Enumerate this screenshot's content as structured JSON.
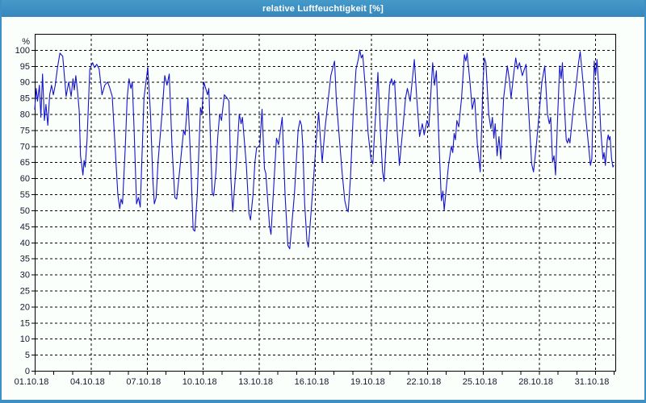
{
  "window": {
    "title": "relative Luftfeuchtigkeit [%]"
  },
  "colors": {
    "titlebar": "#3d8fc4",
    "line": "#1414cc",
    "grid": "#000000",
    "label": "#16162c",
    "plot_background": "#fbfffb"
  },
  "chart_data": {
    "type": "line",
    "title": "relative Luftfeuchtigkeit [%]",
    "xlabel": "",
    "ylabel": "%",
    "grid": "dashed",
    "legend": "none",
    "y_axis": {
      "unit_label": "%",
      "min": 0,
      "max": 105,
      "tick_step": 5,
      "tick_labels": [
        0,
        5,
        10,
        15,
        20,
        25,
        30,
        35,
        40,
        45,
        50,
        55,
        60,
        65,
        70,
        75,
        80,
        85,
        90,
        95,
        100
      ]
    },
    "x_axis": {
      "start_day": 1,
      "end_day": 32.08,
      "minor_tick_every_days": 1,
      "tick_labels": [
        {
          "day": 1,
          "label": "01.10.18"
        },
        {
          "day": 4,
          "label": "04.10.18"
        },
        {
          "day": 7,
          "label": "07.10.18"
        },
        {
          "day": 10,
          "label": "10.10.18"
        },
        {
          "day": 13,
          "label": "13.10.18"
        },
        {
          "day": 16,
          "label": "16.10.18"
        },
        {
          "day": 19,
          "label": "19.10.18"
        },
        {
          "day": 22,
          "label": "22.10.18"
        },
        {
          "day": 25,
          "label": "25.10.18"
        },
        {
          "day": 28,
          "label": "28.10.18"
        },
        {
          "day": 31,
          "label": "31.10.18"
        }
      ]
    },
    "series": [
      {
        "name": "relative Luftfeuchtigkeit",
        "color": "#1414cc",
        "points": [
          [
            1.0,
            81.5
          ],
          [
            1.08,
            88
          ],
          [
            1.15,
            84
          ],
          [
            1.25,
            89
          ],
          [
            1.33,
            79
          ],
          [
            1.42,
            92.5
          ],
          [
            1.52,
            78
          ],
          [
            1.6,
            83
          ],
          [
            1.7,
            76.5
          ],
          [
            1.8,
            86
          ],
          [
            1.9,
            89
          ],
          [
            2.0,
            86
          ],
          [
            2.1,
            89
          ],
          [
            2.22,
            94.5
          ],
          [
            2.35,
            99
          ],
          [
            2.5,
            98
          ],
          [
            2.68,
            85.5
          ],
          [
            2.82,
            90
          ],
          [
            2.95,
            85.5
          ],
          [
            3.05,
            91
          ],
          [
            3.12,
            87.5
          ],
          [
            3.2,
            92
          ],
          [
            3.3,
            86.5
          ],
          [
            3.38,
            81
          ],
          [
            3.45,
            67
          ],
          [
            3.52,
            64
          ],
          [
            3.58,
            61
          ],
          [
            3.64,
            65.5
          ],
          [
            3.7,
            63.5
          ],
          [
            3.8,
            72
          ],
          [
            3.95,
            94
          ],
          [
            4.1,
            96
          ],
          [
            4.2,
            94.5
          ],
          [
            4.32,
            95.5
          ],
          [
            4.45,
            94
          ],
          [
            4.6,
            86
          ],
          [
            4.75,
            89
          ],
          [
            4.9,
            90
          ],
          [
            5.0,
            88.5
          ],
          [
            5.15,
            85.5
          ],
          [
            5.3,
            70
          ],
          [
            5.45,
            55
          ],
          [
            5.55,
            50.5
          ],
          [
            5.62,
            53.5
          ],
          [
            5.7,
            52
          ],
          [
            5.85,
            70
          ],
          [
            5.95,
            85
          ],
          [
            6.05,
            91
          ],
          [
            6.15,
            88
          ],
          [
            6.22,
            90
          ],
          [
            6.32,
            75
          ],
          [
            6.45,
            52
          ],
          [
            6.55,
            54
          ],
          [
            6.65,
            51
          ],
          [
            6.85,
            85
          ],
          [
            7.05,
            94.5
          ],
          [
            7.2,
            80
          ],
          [
            7.32,
            60
          ],
          [
            7.4,
            52
          ],
          [
            7.5,
            54
          ],
          [
            7.6,
            65
          ],
          [
            7.8,
            79
          ],
          [
            7.96,
            92
          ],
          [
            8.08,
            89
          ],
          [
            8.2,
            92.5
          ],
          [
            8.35,
            70
          ],
          [
            8.5,
            54
          ],
          [
            8.6,
            53.5
          ],
          [
            8.75,
            62
          ],
          [
            8.97,
            75
          ],
          [
            9.05,
            73.5
          ],
          [
            9.2,
            85
          ],
          [
            9.35,
            65
          ],
          [
            9.48,
            44
          ],
          [
            9.57,
            43.5
          ],
          [
            9.7,
            55
          ],
          [
            9.87,
            82
          ],
          [
            9.95,
            80
          ],
          [
            10.05,
            90
          ],
          [
            10.15,
            88
          ],
          [
            10.25,
            86
          ],
          [
            10.32,
            88
          ],
          [
            10.42,
            70
          ],
          [
            10.5,
            55.5
          ],
          [
            10.58,
            54.5
          ],
          [
            10.7,
            62
          ],
          [
            10.8,
            73
          ],
          [
            10.9,
            80
          ],
          [
            11.0,
            78
          ],
          [
            11.15,
            86
          ],
          [
            11.3,
            85
          ],
          [
            11.4,
            84
          ],
          [
            11.5,
            60
          ],
          [
            11.6,
            49.5
          ],
          [
            11.8,
            65
          ],
          [
            11.95,
            80
          ],
          [
            12.05,
            77
          ],
          [
            12.12,
            79
          ],
          [
            12.33,
            64
          ],
          [
            12.47,
            49
          ],
          [
            12.55,
            47
          ],
          [
            12.69,
            55
          ],
          [
            12.79,
            65
          ],
          [
            12.88,
            69.5
          ],
          [
            13.0,
            70
          ],
          [
            13.05,
            70.5
          ],
          [
            13.17,
            81.5
          ],
          [
            13.3,
            63
          ],
          [
            13.37,
            61.5
          ],
          [
            13.45,
            55
          ],
          [
            13.57,
            45
          ],
          [
            13.65,
            42.5
          ],
          [
            13.8,
            58
          ],
          [
            13.94,
            72.5
          ],
          [
            14.05,
            70.5
          ],
          [
            14.25,
            79
          ],
          [
            14.4,
            55
          ],
          [
            14.55,
            39
          ],
          [
            14.65,
            38
          ],
          [
            14.8,
            48
          ],
          [
            14.9,
            55
          ],
          [
            15.0,
            65
          ],
          [
            15.1,
            75
          ],
          [
            15.2,
            78
          ],
          [
            15.28,
            76.5
          ],
          [
            15.35,
            70
          ],
          [
            15.45,
            52
          ],
          [
            15.57,
            40.5
          ],
          [
            15.65,
            38.5
          ],
          [
            15.8,
            50
          ],
          [
            15.95,
            62
          ],
          [
            16.05,
            70.5
          ],
          [
            16.2,
            80.5
          ],
          [
            16.3,
            72
          ],
          [
            16.39,
            65
          ],
          [
            16.55,
            76
          ],
          [
            16.7,
            84
          ],
          [
            16.85,
            92
          ],
          [
            17.05,
            96.5
          ],
          [
            17.15,
            84
          ],
          [
            17.3,
            73
          ],
          [
            17.45,
            62
          ],
          [
            17.6,
            53
          ],
          [
            17.7,
            50.5
          ],
          [
            17.78,
            49.5
          ],
          [
            17.9,
            60
          ],
          [
            18.05,
            80
          ],
          [
            18.2,
            94
          ],
          [
            18.32,
            97
          ],
          [
            18.4,
            100
          ],
          [
            18.48,
            97.5
          ],
          [
            18.56,
            98.5
          ],
          [
            18.7,
            88
          ],
          [
            18.85,
            74
          ],
          [
            19.0,
            66
          ],
          [
            19.1,
            64.5
          ],
          [
            19.25,
            80
          ],
          [
            19.37,
            93
          ],
          [
            19.5,
            75
          ],
          [
            19.62,
            62
          ],
          [
            19.7,
            59
          ],
          [
            19.85,
            75
          ],
          [
            20.0,
            89
          ],
          [
            20.1,
            91
          ],
          [
            20.18,
            89
          ],
          [
            20.26,
            90.5
          ],
          [
            20.4,
            75
          ],
          [
            20.52,
            64
          ],
          [
            20.7,
            75
          ],
          [
            20.85,
            85
          ],
          [
            20.95,
            88
          ],
          [
            21.1,
            84
          ],
          [
            21.32,
            97
          ],
          [
            21.45,
            85
          ],
          [
            21.6,
            73
          ],
          [
            21.75,
            77
          ],
          [
            21.85,
            73.5
          ],
          [
            22.0,
            78
          ],
          [
            22.1,
            76
          ],
          [
            22.3,
            96
          ],
          [
            22.4,
            89
          ],
          [
            22.5,
            93.5
          ],
          [
            22.65,
            70
          ],
          [
            22.77,
            53
          ],
          [
            22.85,
            56
          ],
          [
            22.92,
            50
          ],
          [
            23.05,
            58
          ],
          [
            23.15,
            64
          ],
          [
            23.3,
            70
          ],
          [
            23.38,
            68
          ],
          [
            23.45,
            74
          ],
          [
            23.52,
            72
          ],
          [
            23.6,
            78
          ],
          [
            23.7,
            76
          ],
          [
            23.85,
            85
          ],
          [
            24.0,
            98.5
          ],
          [
            24.08,
            96.5
          ],
          [
            24.15,
            99
          ],
          [
            24.3,
            90
          ],
          [
            24.42,
            81.5
          ],
          [
            24.55,
            85
          ],
          [
            24.7,
            70
          ],
          [
            24.85,
            62
          ],
          [
            25.0,
            90
          ],
          [
            25.07,
            97.5
          ],
          [
            25.15,
            96
          ],
          [
            25.3,
            80
          ],
          [
            25.42,
            75.5
          ],
          [
            25.5,
            79
          ],
          [
            25.58,
            72.5
          ],
          [
            25.65,
            77
          ],
          [
            25.75,
            67
          ],
          [
            25.85,
            73
          ],
          [
            25.95,
            66
          ],
          [
            26.1,
            85
          ],
          [
            26.3,
            95
          ],
          [
            26.4,
            91
          ],
          [
            26.5,
            85
          ],
          [
            26.65,
            93
          ],
          [
            26.75,
            97.5
          ],
          [
            26.85,
            94
          ],
          [
            26.95,
            96
          ],
          [
            27.1,
            92
          ],
          [
            27.3,
            95.5
          ],
          [
            27.45,
            80
          ],
          [
            27.6,
            64.5
          ],
          [
            27.7,
            62
          ],
          [
            27.85,
            70
          ],
          [
            28.0,
            80
          ],
          [
            28.15,
            90
          ],
          [
            28.3,
            95
          ],
          [
            28.45,
            80
          ],
          [
            28.55,
            77
          ],
          [
            28.62,
            79
          ],
          [
            28.72,
            65
          ],
          [
            28.8,
            67
          ],
          [
            28.88,
            61
          ],
          [
            29.0,
            80
          ],
          [
            29.1,
            95
          ],
          [
            29.18,
            91
          ],
          [
            29.25,
            96
          ],
          [
            29.33,
            85
          ],
          [
            29.45,
            72
          ],
          [
            29.52,
            71
          ],
          [
            29.58,
            72.5
          ],
          [
            29.65,
            71
          ],
          [
            29.8,
            80
          ],
          [
            30.0,
            90
          ],
          [
            30.1,
            95.5
          ],
          [
            30.2,
            99.5
          ],
          [
            30.35,
            90
          ],
          [
            30.5,
            79
          ],
          [
            30.65,
            70
          ],
          [
            30.75,
            64
          ],
          [
            30.82,
            66
          ],
          [
            30.95,
            96.5
          ],
          [
            31.02,
            92
          ],
          [
            31.1,
            97
          ],
          [
            31.2,
            88
          ],
          [
            31.3,
            75
          ],
          [
            31.42,
            66
          ],
          [
            31.48,
            68
          ],
          [
            31.55,
            64
          ],
          [
            31.65,
            72
          ],
          [
            31.7,
            73.5
          ],
          [
            31.75,
            72
          ],
          [
            31.8,
            73
          ],
          [
            31.88,
            66
          ],
          [
            31.95,
            63.5
          ],
          [
            32.0,
            64
          ]
        ]
      }
    ]
  }
}
